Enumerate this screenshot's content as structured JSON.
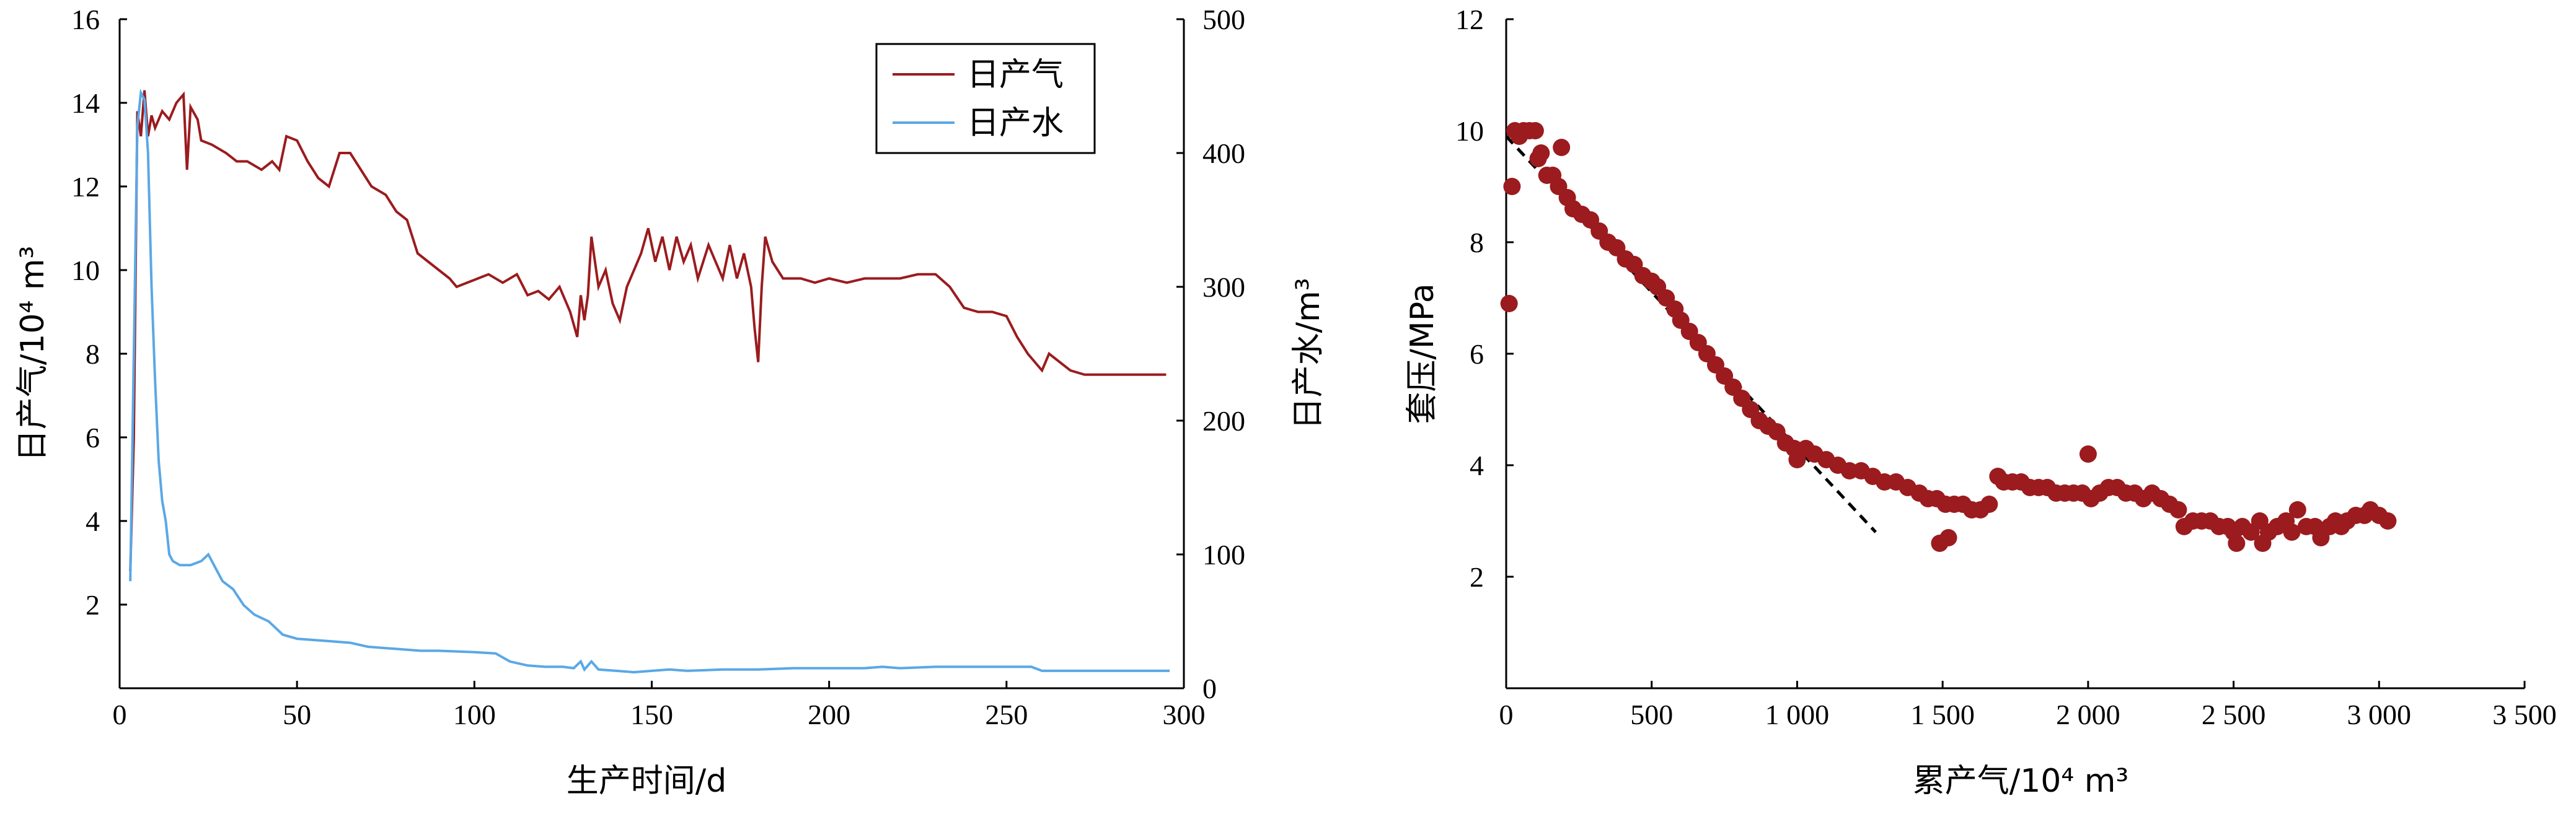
{
  "chart_data": [
    {
      "type": "line",
      "xlabel": "生产时间/d",
      "ylabel_left": "日产气/10⁴ m³",
      "ylabel_right": "日产水/m³",
      "xlim": [
        0,
        300
      ],
      "ylim_left": [
        0,
        16
      ],
      "ylim_right": [
        0,
        500
      ],
      "x_ticks": [
        "0",
        "50",
        "100",
        "150",
        "200",
        "250",
        "300"
      ],
      "y_left_ticks": [
        "2",
        "4",
        "6",
        "8",
        "10",
        "12",
        "14",
        "16"
      ],
      "y_right_ticks": [
        "0",
        "100",
        "200",
        "300",
        "400",
        "500"
      ],
      "legend_position": "top-right",
      "series": [
        {
          "name": "日产气",
          "axis": "left",
          "color": "#9b1b1e",
          "points": [
            [
              3,
              2.8
            ],
            [
              4,
              6.0
            ],
            [
              5,
              13.8
            ],
            [
              6,
              13.2
            ],
            [
              7,
              14.3
            ],
            [
              8,
              13.2
            ],
            [
              9,
              13.7
            ],
            [
              10,
              13.4
            ],
            [
              12,
              13.8
            ],
            [
              14,
              13.6
            ],
            [
              16,
              14.0
            ],
            [
              18,
              14.2
            ],
            [
              19,
              12.4
            ],
            [
              20,
              13.9
            ],
            [
              22,
              13.6
            ],
            [
              23,
              13.1
            ],
            [
              26,
              13.0
            ],
            [
              30,
              12.8
            ],
            [
              33,
              12.6
            ],
            [
              36,
              12.6
            ],
            [
              40,
              12.4
            ],
            [
              43,
              12.6
            ],
            [
              45,
              12.4
            ],
            [
              47,
              13.2
            ],
            [
              50,
              13.1
            ],
            [
              53,
              12.6
            ],
            [
              56,
              12.2
            ],
            [
              59,
              12.0
            ],
            [
              62,
              12.8
            ],
            [
              65,
              12.8
            ],
            [
              68,
              12.4
            ],
            [
              71,
              12.0
            ],
            [
              75,
              11.8
            ],
            [
              78,
              11.4
            ],
            [
              81,
              11.2
            ],
            [
              84,
              10.4
            ],
            [
              87,
              10.2
            ],
            [
              90,
              10.0
            ],
            [
              93,
              9.8
            ],
            [
              95,
              9.6
            ],
            [
              98,
              9.7
            ],
            [
              101,
              9.8
            ],
            [
              104,
              9.9
            ],
            [
              108,
              9.7
            ],
            [
              112,
              9.9
            ],
            [
              115,
              9.4
            ],
            [
              118,
              9.5
            ],
            [
              121,
              9.3
            ],
            [
              124,
              9.6
            ],
            [
              127,
              9.0
            ],
            [
              129,
              8.4
            ],
            [
              130,
              9.4
            ],
            [
              131,
              8.8
            ],
            [
              132,
              9.4
            ],
            [
              133,
              10.8
            ],
            [
              135,
              9.6
            ],
            [
              137,
              10.0
            ],
            [
              139,
              9.2
            ],
            [
              141,
              8.8
            ],
            [
              143,
              9.6
            ],
            [
              145,
              10.0
            ],
            [
              147,
              10.4
            ],
            [
              149,
              11.0
            ],
            [
              151,
              10.2
            ],
            [
              153,
              10.8
            ],
            [
              155,
              10.0
            ],
            [
              157,
              10.8
            ],
            [
              159,
              10.2
            ],
            [
              161,
              10.6
            ],
            [
              163,
              9.8
            ],
            [
              166,
              10.6
            ],
            [
              168,
              10.2
            ],
            [
              170,
              9.8
            ],
            [
              172,
              10.6
            ],
            [
              174,
              9.8
            ],
            [
              176,
              10.4
            ],
            [
              178,
              9.6
            ],
            [
              179,
              8.6
            ],
            [
              180,
              7.8
            ],
            [
              181,
              9.6
            ],
            [
              182,
              10.8
            ],
            [
              184,
              10.2
            ],
            [
              187,
              9.8
            ],
            [
              192,
              9.8
            ],
            [
              196,
              9.7
            ],
            [
              200,
              9.8
            ],
            [
              205,
              9.7
            ],
            [
              210,
              9.8
            ],
            [
              215,
              9.8
            ],
            [
              220,
              9.8
            ],
            [
              225,
              9.9
            ],
            [
              230,
              9.9
            ],
            [
              234,
              9.6
            ],
            [
              238,
              9.1
            ],
            [
              242,
              9.0
            ],
            [
              246,
              9.0
            ],
            [
              250,
              8.9
            ],
            [
              253,
              8.4
            ],
            [
              256,
              8.0
            ],
            [
              258,
              7.8
            ],
            [
              260,
              7.6
            ],
            [
              262,
              8.0
            ],
            [
              265,
              7.8
            ],
            [
              268,
              7.6
            ],
            [
              272,
              7.5
            ],
            [
              278,
              7.5
            ],
            [
              285,
              7.5
            ],
            [
              290,
              7.5
            ],
            [
              295,
              7.5
            ]
          ]
        },
        {
          "name": "日产水",
          "axis": "right",
          "color": "#5aa8e6",
          "points": [
            [
              3,
              80
            ],
            [
              4,
              250
            ],
            [
              5,
              420
            ],
            [
              6,
              445
            ],
            [
              7,
              440
            ],
            [
              8,
              400
            ],
            [
              9,
              300
            ],
            [
              10,
              230
            ],
            [
              11,
              170
            ],
            [
              12,
              140
            ],
            [
              13,
              125
            ],
            [
              14,
              100
            ],
            [
              15,
              95
            ],
            [
              17,
              92
            ],
            [
              20,
              92
            ],
            [
              23,
              95
            ],
            [
              25,
              100
            ],
            [
              27,
              90
            ],
            [
              29,
              80
            ],
            [
              32,
              74
            ],
            [
              35,
              62
            ],
            [
              38,
              55
            ],
            [
              42,
              50
            ],
            [
              46,
              40
            ],
            [
              50,
              37
            ],
            [
              55,
              36
            ],
            [
              60,
              35
            ],
            [
              65,
              34
            ],
            [
              70,
              31
            ],
            [
              75,
              30
            ],
            [
              80,
              29
            ],
            [
              85,
              28
            ],
            [
              90,
              28
            ],
            [
              100,
              27
            ],
            [
              106,
              26
            ],
            [
              110,
              20
            ],
            [
              115,
              17
            ],
            [
              120,
              16
            ],
            [
              125,
              16
            ],
            [
              128,
              15
            ],
            [
              130,
              20
            ],
            [
              131,
              14
            ],
            [
              133,
              20
            ],
            [
              135,
              14
            ],
            [
              140,
              13
            ],
            [
              145,
              12
            ],
            [
              150,
              13
            ],
            [
              155,
              14
            ],
            [
              160,
              13
            ],
            [
              170,
              14
            ],
            [
              180,
              14
            ],
            [
              190,
              15
            ],
            [
              200,
              15
            ],
            [
              210,
              15
            ],
            [
              215,
              16
            ],
            [
              220,
              15
            ],
            [
              230,
              16
            ],
            [
              240,
              16
            ],
            [
              250,
              16
            ],
            [
              257,
              16
            ],
            [
              260,
              13
            ],
            [
              270,
              13
            ],
            [
              280,
              13
            ],
            [
              290,
              13
            ],
            [
              296,
              13
            ]
          ]
        }
      ]
    },
    {
      "type": "scatter",
      "xlabel": "累产气/10⁴ m³",
      "ylabel": "套压/MPa",
      "xlim": [
        0,
        3500
      ],
      "ylim": [
        0,
        12
      ],
      "x_ticks": [
        "0",
        "500",
        "1 000",
        "1 500",
        "2 000",
        "2 500",
        "3 000",
        "3 500"
      ],
      "y_ticks": [
        "2",
        "4",
        "6",
        "8",
        "10",
        "12"
      ],
      "marker_color": "#9b1b1e",
      "trend_line": [
        [
          0,
          9.9
        ],
        [
          1270,
          2.8
        ]
      ],
      "points": [
        [
          10,
          6.9
        ],
        [
          20,
          9.0
        ],
        [
          30,
          10.0
        ],
        [
          45,
          9.9
        ],
        [
          60,
          10.0
        ],
        [
          80,
          10.0
        ],
        [
          100,
          10.0
        ],
        [
          110,
          9.5
        ],
        [
          120,
          9.6
        ],
        [
          140,
          9.2
        ],
        [
          160,
          9.2
        ],
        [
          180,
          9.0
        ],
        [
          190,
          9.7
        ],
        [
          210,
          8.8
        ],
        [
          230,
          8.6
        ],
        [
          260,
          8.5
        ],
        [
          290,
          8.4
        ],
        [
          320,
          8.2
        ],
        [
          350,
          8.0
        ],
        [
          380,
          7.9
        ],
        [
          410,
          7.7
        ],
        [
          440,
          7.6
        ],
        [
          470,
          7.4
        ],
        [
          500,
          7.3
        ],
        [
          520,
          7.2
        ],
        [
          550,
          7.0
        ],
        [
          580,
          6.8
        ],
        [
          600,
          6.6
        ],
        [
          630,
          6.4
        ],
        [
          660,
          6.2
        ],
        [
          690,
          6.0
        ],
        [
          720,
          5.8
        ],
        [
          750,
          5.6
        ],
        [
          780,
          5.4
        ],
        [
          810,
          5.2
        ],
        [
          840,
          5.0
        ],
        [
          870,
          4.8
        ],
        [
          900,
          4.7
        ],
        [
          930,
          4.6
        ],
        [
          960,
          4.4
        ],
        [
          990,
          4.3
        ],
        [
          1000,
          4.1
        ],
        [
          1030,
          4.3
        ],
        [
          1060,
          4.2
        ],
        [
          1100,
          4.1
        ],
        [
          1140,
          4.0
        ],
        [
          1180,
          3.9
        ],
        [
          1220,
          3.9
        ],
        [
          1260,
          3.8
        ],
        [
          1300,
          3.7
        ],
        [
          1340,
          3.7
        ],
        [
          1380,
          3.6
        ],
        [
          1420,
          3.5
        ],
        [
          1450,
          3.4
        ],
        [
          1480,
          3.4
        ],
        [
          1490,
          2.6
        ],
        [
          1510,
          3.3
        ],
        [
          1520,
          2.7
        ],
        [
          1540,
          3.3
        ],
        [
          1570,
          3.3
        ],
        [
          1600,
          3.2
        ],
        [
          1630,
          3.2
        ],
        [
          1660,
          3.3
        ],
        [
          1690,
          3.8
        ],
        [
          1710,
          3.7
        ],
        [
          1740,
          3.7
        ],
        [
          1770,
          3.7
        ],
        [
          1800,
          3.6
        ],
        [
          1830,
          3.6
        ],
        [
          1860,
          3.6
        ],
        [
          1890,
          3.5
        ],
        [
          1920,
          3.5
        ],
        [
          1950,
          3.5
        ],
        [
          1980,
          3.5
        ],
        [
          2000,
          4.2
        ],
        [
          2010,
          3.4
        ],
        [
          2040,
          3.5
        ],
        [
          2070,
          3.6
        ],
        [
          2100,
          3.6
        ],
        [
          2130,
          3.5
        ],
        [
          2160,
          3.5
        ],
        [
          2190,
          3.4
        ],
        [
          2220,
          3.5
        ],
        [
          2250,
          3.4
        ],
        [
          2280,
          3.3
        ],
        [
          2310,
          3.2
        ],
        [
          2330,
          2.9
        ],
        [
          2360,
          3.0
        ],
        [
          2390,
          3.0
        ],
        [
          2420,
          3.0
        ],
        [
          2450,
          2.9
        ],
        [
          2480,
          2.9
        ],
        [
          2500,
          2.8
        ],
        [
          2510,
          2.6
        ],
        [
          2530,
          2.9
        ],
        [
          2560,
          2.8
        ],
        [
          2590,
          3.0
        ],
        [
          2600,
          2.6
        ],
        [
          2620,
          2.8
        ],
        [
          2650,
          2.9
        ],
        [
          2680,
          3.0
        ],
        [
          2700,
          2.8
        ],
        [
          2720,
          3.2
        ],
        [
          2750,
          2.9
        ],
        [
          2780,
          2.9
        ],
        [
          2800,
          2.7
        ],
        [
          2830,
          2.9
        ],
        [
          2850,
          3.0
        ],
        [
          2870,
          2.9
        ],
        [
          2890,
          3.0
        ],
        [
          2920,
          3.1
        ],
        [
          2950,
          3.1
        ],
        [
          2970,
          3.2
        ],
        [
          3000,
          3.1
        ],
        [
          3030,
          3.0
        ]
      ]
    }
  ]
}
